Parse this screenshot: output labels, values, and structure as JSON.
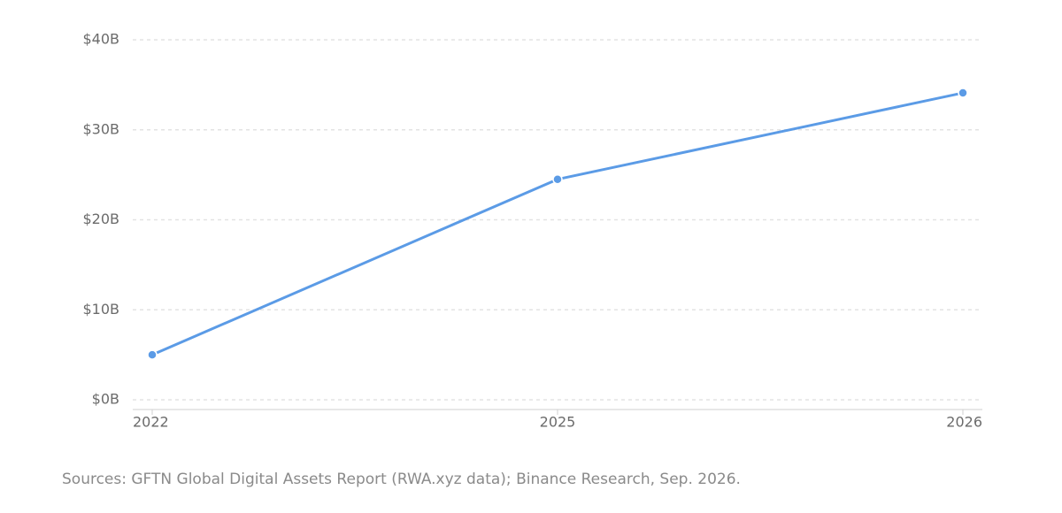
{
  "chart_data": {
    "type": "line",
    "categories": [
      "2022",
      "2025",
      "2026"
    ],
    "series": [
      {
        "color": "#5b9be6",
        "values": [
          5,
          24.5,
          34.1
        ]
      }
    ],
    "ylim": [
      0,
      40
    ],
    "yticks": [
      {
        "value": 0,
        "label": "$0B"
      },
      {
        "value": 10,
        "label": "$10B"
      },
      {
        "value": 20,
        "label": "$20B"
      },
      {
        "value": 30,
        "label": "$30B"
      },
      {
        "value": 40,
        "label": "$40B"
      }
    ],
    "grid": true,
    "source": "Sources: GFTN Global Digital Assets Report (RWA.xyz data); Binance Research, Sep. 2026."
  }
}
